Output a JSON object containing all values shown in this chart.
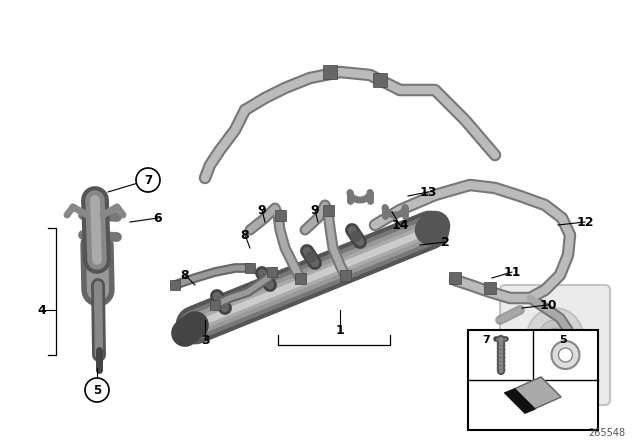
{
  "bg_color": "#ffffff",
  "part_number": "265548",
  "fig_width": 6.4,
  "fig_height": 4.48,
  "dpi": 100,
  "gray1": "#888888",
  "gray2": "#aaaaaa",
  "gray3": "#666666",
  "gray4": "#bbbbbb",
  "gray5": "#999999",
  "dark": "#444444",
  "light": "#cccccc",
  "black": "#000000",
  "white": "#ffffff",
  "label_color": "#111111",
  "label_fs": 9,
  "circle_label_fs": 9,
  "pn_fs": 7,
  "lw_thin": 0.8,
  "lw_pipe": 3.5,
  "lw_pipe_bg": 6.5,
  "lw_rail": 18,
  "lw_rail_hi": 10,
  "lw_tube": 4.5,
  "lw_tube_bg": 8.0
}
